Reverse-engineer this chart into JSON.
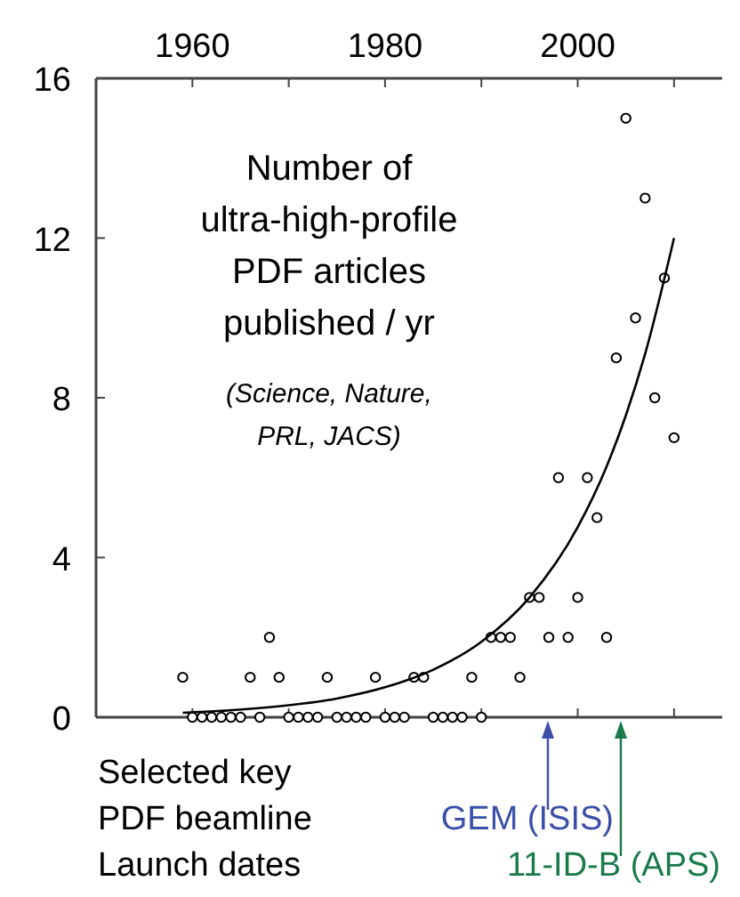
{
  "chart_data": {
    "type": "scatter",
    "title": "Number of ultra-high-profile PDF articles published / yr",
    "subtitle": "(Science, Nature, PRL, JACS)",
    "annotations": [
      "Selected key PDF beamline Launch dates",
      "GEM (ISIS)",
      "11-ID-B (APS)"
    ],
    "xlim": [
      1950,
      2015
    ],
    "xticks": [
      {
        "value": 1950,
        "label": null
      },
      1960,
      {
        "value": 1970,
        "label": null
      },
      1980,
      {
        "value": 1990,
        "label": null
      },
      2000,
      {
        "value": 2010,
        "label": null
      }
    ],
    "ylim": [
      0,
      16
    ],
    "yticks": [
      0,
      4,
      8,
      12,
      16
    ],
    "marker": "circle",
    "grid": false,
    "series": [
      {
        "color": "#000000",
        "x": [
          1959,
          1960,
          1961,
          1962,
          1963,
          1964,
          1965,
          1966,
          1967,
          1968,
          1969,
          1970,
          1971,
          1972,
          1973,
          1974,
          1975,
          1976,
          1977,
          1978,
          1979,
          1980,
          1981,
          1982,
          1983,
          1984,
          1985,
          1986,
          1987,
          1988,
          1989,
          1990,
          1991,
          1992,
          1993,
          1994,
          1995,
          1996,
          1997,
          1998,
          1999,
          2000,
          2001,
          2002,
          2003,
          2004,
          2005,
          2006,
          2007,
          2008,
          2009,
          2010
        ],
        "values": [
          1,
          0,
          0,
          0,
          0,
          0,
          0,
          1,
          0,
          2,
          1,
          0,
          0,
          0,
          0,
          1,
          0,
          0,
          0,
          0,
          1,
          0,
          0,
          0,
          1,
          1,
          0,
          0,
          0,
          0,
          1,
          0,
          2,
          2,
          2,
          1,
          3,
          3,
          2,
          6,
          2,
          3,
          6,
          5,
          2,
          9,
          15,
          10,
          13,
          8,
          11,
          7
        ]
      },
      {
        "type": "line",
        "color": "#000000",
        "marker": "none",
        "x": [
          1959,
          1963,
          1970,
          1975,
          1980,
          1985,
          1990,
          1995,
          2000,
          2003,
          2005,
          2007,
          2010
        ],
        "values": [
          0.11,
          0.16,
          0.3,
          0.47,
          0.75,
          1.19,
          1.89,
          3.0,
          4.76,
          6.28,
          7.56,
          9.1,
          12
        ]
      }
    ]
  }
}
